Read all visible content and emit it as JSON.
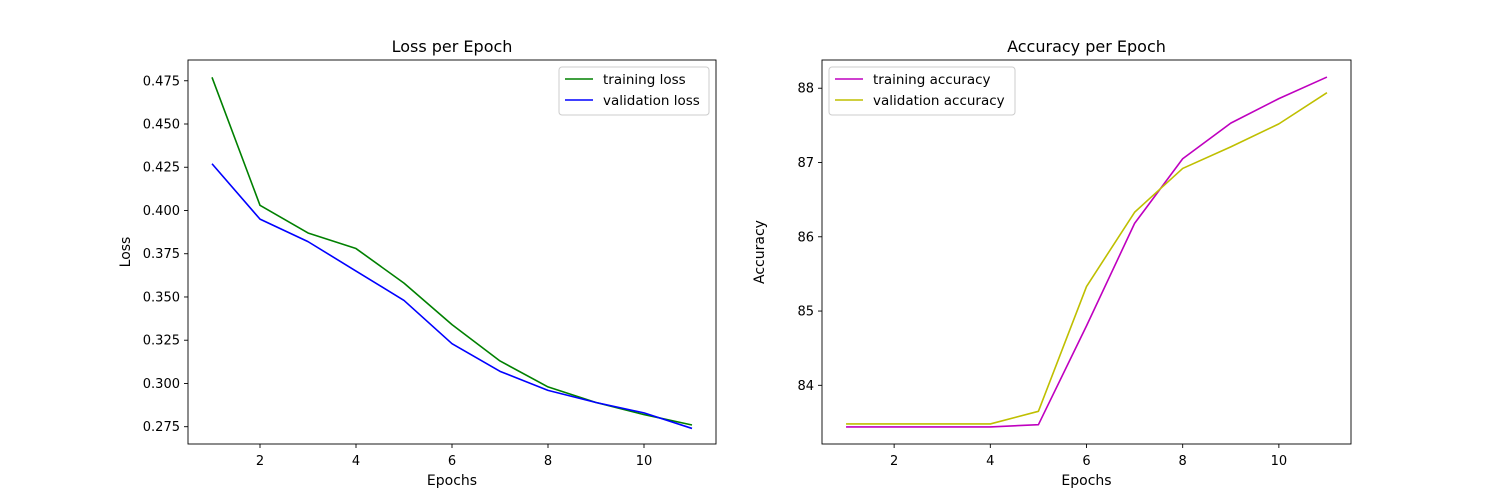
{
  "chart_data": [
    {
      "type": "line",
      "title": "Loss per Epoch",
      "xlabel": "Epochs",
      "ylabel": "Loss",
      "xlim": [
        0.5,
        11.5
      ],
      "ylim": [
        0.265,
        0.487
      ],
      "xticks": [
        2,
        4,
        6,
        8,
        10
      ],
      "xtick_labels": [
        "2",
        "4",
        "6",
        "8",
        "10"
      ],
      "yticks": [
        0.275,
        0.3,
        0.325,
        0.35,
        0.375,
        0.4,
        0.425,
        0.45,
        0.475
      ],
      "ytick_labels": [
        "0.275",
        "0.300",
        "0.325",
        "0.350",
        "0.375",
        "0.400",
        "0.425",
        "0.450",
        "0.475"
      ],
      "legend_position": "top-right",
      "grid": false,
      "x": [
        1,
        2,
        3,
        4,
        5,
        6,
        7,
        8,
        9,
        10,
        11
      ],
      "series": [
        {
          "name": "training loss",
          "color": "#008000",
          "values": [
            0.477,
            0.403,
            0.387,
            0.378,
            0.358,
            0.334,
            0.313,
            0.298,
            0.289,
            0.282,
            0.276
          ]
        },
        {
          "name": "validation loss",
          "color": "#0000ff",
          "values": [
            0.427,
            0.395,
            0.382,
            0.365,
            0.348,
            0.323,
            0.307,
            0.296,
            0.289,
            0.283,
            0.274
          ]
        }
      ]
    },
    {
      "type": "line",
      "title": "Accuracy per Epoch",
      "xlabel": "Epochs",
      "ylabel": "Accuracy",
      "xlim": [
        0.5,
        11.5
      ],
      "ylim": [
        83.21,
        88.38
      ],
      "xticks": [
        2,
        4,
        6,
        8,
        10
      ],
      "xtick_labels": [
        "2",
        "4",
        "6",
        "8",
        "10"
      ],
      "yticks": [
        84,
        85,
        86,
        87,
        88
      ],
      "ytick_labels": [
        "84",
        "85",
        "86",
        "87",
        "88"
      ],
      "legend_position": "top-left",
      "grid": false,
      "x": [
        1,
        2,
        3,
        4,
        5,
        6,
        7,
        8,
        9,
        10,
        11
      ],
      "series": [
        {
          "name": "training accuracy",
          "color": "#bf00bf",
          "values": [
            83.44,
            83.44,
            83.44,
            83.44,
            83.47,
            84.8,
            86.18,
            87.05,
            87.53,
            87.86,
            88.15
          ]
        },
        {
          "name": "validation accuracy",
          "color": "#bfbf00",
          "values": [
            83.48,
            83.48,
            83.48,
            83.48,
            83.65,
            85.33,
            86.33,
            86.92,
            87.21,
            87.52,
            87.94
          ]
        }
      ]
    }
  ]
}
